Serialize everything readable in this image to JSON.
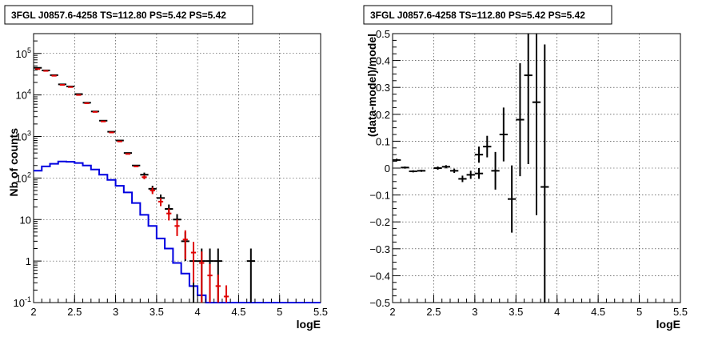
{
  "chart_data": [
    {
      "type": "line",
      "title": "3FGL J0857.6-4258 TS=112.80 PS=5.42 PS=5.42",
      "xlabel": "logE",
      "ylabel": "Nb of counts",
      "xlim": [
        2,
        5.5
      ],
      "ylim": [
        0.1,
        300000
      ],
      "yscale": "log",
      "grid": true,
      "x_ticks": [
        "2",
        "2.5",
        "3",
        "3.5",
        "4",
        "4.5",
        "5",
        "5.5"
      ],
      "y_ticks": [
        "10^-1",
        "1",
        "10",
        "10^2",
        "10^3",
        "10^4",
        "10^5"
      ],
      "series": [
        {
          "color": "#000000",
          "style": "errorbar",
          "points": [
            [
              2.05,
              45000,
              0
            ],
            [
              2.15,
              39000,
              0
            ],
            [
              2.25,
              30000,
              0
            ],
            [
              2.35,
              18000,
              0
            ],
            [
              2.45,
              16000,
              0
            ],
            [
              2.55,
              10500,
              0
            ],
            [
              2.65,
              6500,
              0
            ],
            [
              2.75,
              4000,
              0
            ],
            [
              2.85,
              2400,
              0
            ],
            [
              2.95,
              1300,
              0
            ],
            [
              3.05,
              800,
              0
            ],
            [
              3.15,
              400,
              0
            ],
            [
              3.25,
              200,
              0
            ],
            [
              3.35,
              120,
              15
            ],
            [
              3.45,
              55,
              10
            ],
            [
              3.55,
              33,
              7
            ],
            [
              3.65,
              18,
              5
            ],
            [
              3.75,
              10,
              3.5
            ],
            [
              3.85,
              3,
              2
            ],
            [
              3.95,
              1,
              1
            ],
            [
              4.05,
              1,
              1
            ],
            [
              4.15,
              1,
              1
            ],
            [
              4.25,
              1,
              1
            ],
            [
              4.65,
              1,
              1
            ]
          ]
        },
        {
          "color": "#e00000",
          "style": "errorbar",
          "points": [
            [
              2.05,
              42000,
              0
            ],
            [
              2.15,
              38000,
              0
            ],
            [
              2.25,
              29000,
              0
            ],
            [
              2.35,
              17500,
              0
            ],
            [
              2.45,
              15500,
              0
            ],
            [
              2.55,
              10000,
              0
            ],
            [
              2.65,
              6300,
              0
            ],
            [
              2.75,
              3900,
              0
            ],
            [
              2.85,
              2300,
              0
            ],
            [
              2.95,
              1250,
              0
            ],
            [
              3.05,
              760,
              0
            ],
            [
              3.15,
              380,
              0
            ],
            [
              3.25,
              190,
              0
            ],
            [
              3.35,
              105,
              12
            ],
            [
              3.45,
              50,
              9
            ],
            [
              3.55,
              27,
              6
            ],
            [
              3.65,
              14,
              4.5
            ],
            [
              3.75,
              7,
              3
            ],
            [
              3.85,
              3.3,
              2.2
            ],
            [
              3.95,
              1.6,
              1.3
            ],
            [
              4.05,
              0.9,
              0.8
            ],
            [
              4.15,
              0.45,
              0.4
            ],
            [
              4.25,
              0.25,
              0.22
            ],
            [
              4.35,
              0.14,
              0.12
            ]
          ]
        },
        {
          "color": "#0000e0",
          "style": "step",
          "edges": [
            2.0,
            2.1,
            2.2,
            2.3,
            2.4,
            2.5,
            2.6,
            2.7,
            2.8,
            2.9,
            3.0,
            3.1,
            3.2,
            3.3,
            3.4,
            3.5,
            3.6,
            3.7,
            3.8,
            3.9,
            4.0,
            4.1,
            5.5
          ],
          "values": [
            150,
            190,
            220,
            250,
            245,
            230,
            200,
            160,
            120,
            90,
            65,
            45,
            25,
            13,
            7,
            3.5,
            2,
            0.9,
            0.5,
            0.25,
            0.15,
            0.1
          ]
        }
      ]
    },
    {
      "type": "scatter",
      "title": "3FGL J0857.6-4258 TS=112.80 PS=5.42 PS=5.42",
      "xlabel": "logE",
      "ylabel": "(data-model)/model",
      "xlim": [
        2,
        5.5
      ],
      "ylim": [
        -0.5,
        0.5
      ],
      "grid": true,
      "x_ticks": [
        "2",
        "2.5",
        "3",
        "3.5",
        "4",
        "4.5",
        "5",
        "5.5"
      ],
      "y_ticks": [
        "−0.5",
        "−0.4",
        "−0.3",
        "−0.2",
        "−0.1",
        "0",
        "0.1",
        "0.2",
        "0.3",
        "0.4",
        "0.5"
      ],
      "series": [
        {
          "color": "#000000",
          "style": "errorbar",
          "points": [
            [
              2.05,
              0.03,
              0.005
            ],
            [
              2.15,
              0.002,
              0.004
            ],
            [
              2.25,
              -0.012,
              0.004
            ],
            [
              2.35,
              -0.01,
              0.004
            ],
            [
              2.55,
              0.0,
              0.006
            ],
            [
              2.65,
              0.005,
              0.006
            ],
            [
              2.75,
              -0.01,
              0.008
            ],
            [
              2.85,
              -0.04,
              0.012
            ],
            [
              2.95,
              -0.025,
              0.015
            ],
            [
              3.05,
              -0.02,
              0.02
            ],
            [
              3.05,
              0.05,
              0.03
            ],
            [
              3.15,
              0.08,
              0.04
            ],
            [
              3.25,
              -0.01,
              0.07
            ],
            [
              3.35,
              0.125,
              0.1
            ],
            [
              3.45,
              -0.115,
              0.125
            ],
            [
              3.55,
              0.18,
              0.21
            ],
            [
              3.65,
              0.345,
              0.33
            ],
            [
              3.75,
              0.245,
              0.42
            ],
            [
              3.85,
              -0.07,
              0.53
            ]
          ]
        }
      ]
    }
  ]
}
